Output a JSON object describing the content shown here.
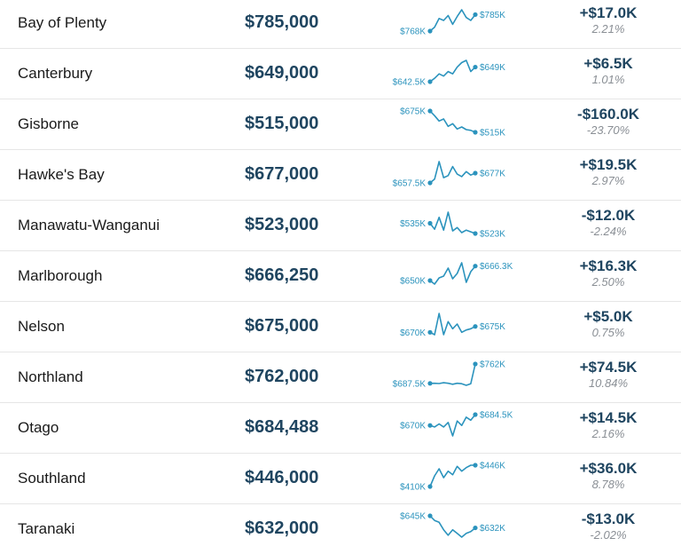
{
  "rows": [
    {
      "region": "Bay of Plenty",
      "price": "$785,000",
      "start_label": "$768K",
      "end_label": "$785K",
      "change": "+$17.0K",
      "percent": "2.21%",
      "trend": [
        768,
        772,
        781,
        779,
        784,
        775,
        783,
        790,
        782,
        779,
        785
      ]
    },
    {
      "region": "Canterbury",
      "price": "$649,000",
      "start_label": "$642.5K",
      "end_label": "$649K",
      "change": "+$6.5K",
      "percent": "1.01%",
      "trend": [
        642.5,
        644,
        646,
        645,
        647,
        646,
        649,
        651,
        652,
        647,
        649
      ]
    },
    {
      "region": "Gisborne",
      "price": "$515,000",
      "start_label": "$675K",
      "end_label": "$515K",
      "change": "-$160.0K",
      "percent": "-23.70%",
      "trend": [
        675,
        640,
        600,
        615,
        560,
        580,
        540,
        555,
        535,
        530,
        515
      ]
    },
    {
      "region": "Hawke's Bay",
      "price": "$677,000",
      "start_label": "$657.5K",
      "end_label": "$677K",
      "change": "+$19.5K",
      "percent": "2.97%",
      "trend": [
        657.5,
        665,
        700,
        668,
        672,
        690,
        675,
        670,
        680,
        673,
        677
      ]
    },
    {
      "region": "Manawatu-Wanganui",
      "price": "$523,000",
      "start_label": "$535K",
      "end_label": "$523K",
      "change": "-$12.0K",
      "percent": "-2.24%",
      "trend": [
        535,
        528,
        542,
        527,
        548,
        526,
        530,
        524,
        527,
        525,
        523
      ]
    },
    {
      "region": "Marlborough",
      "price": "$666,250",
      "start_label": "$650K",
      "end_label": "$666.3K",
      "change": "+$16.3K",
      "percent": "2.50%",
      "trend": [
        650,
        646,
        653,
        655,
        664,
        652,
        658,
        670,
        648,
        660,
        666.3
      ]
    },
    {
      "region": "Nelson",
      "price": "$675,000",
      "start_label": "$670K",
      "end_label": "$675K",
      "change": "+$5.0K",
      "percent": "0.75%",
      "trend": [
        670,
        668,
        686,
        668,
        679,
        673,
        677,
        670,
        672,
        673,
        675
      ]
    },
    {
      "region": "Northland",
      "price": "$762,000",
      "start_label": "$687.5K",
      "end_label": "$762K",
      "change": "+$74.5K",
      "percent": "10.84%",
      "trend": [
        687.5,
        688,
        687,
        690,
        688,
        684,
        688,
        686,
        680,
        686,
        762
      ]
    },
    {
      "region": "Otago",
      "price": "$684,488",
      "start_label": "$670K",
      "end_label": "$684.5K",
      "change": "+$14.5K",
      "percent": "2.16%",
      "trend": [
        670,
        668,
        672,
        668,
        674,
        656,
        676,
        670,
        681,
        677,
        684.5
      ]
    },
    {
      "region": "Southland",
      "price": "$446,000",
      "start_label": "$410K",
      "end_label": "$446K",
      "change": "+$36.0K",
      "percent": "8.78%",
      "trend": [
        410,
        428,
        440,
        425,
        436,
        430,
        444,
        436,
        442,
        446,
        446
      ]
    },
    {
      "region": "Taranaki",
      "price": "$632,000",
      "start_label": "$645K",
      "end_label": "$632K",
      "change": "-$13.0K",
      "percent": "-2.02%",
      "trend": [
        645,
        640,
        638,
        630,
        624,
        630,
        626,
        622,
        626,
        628,
        632
      ]
    }
  ],
  "colors": {
    "spark": "#2b93bd",
    "price": "#1f4560",
    "percent": "#8a8f95"
  }
}
